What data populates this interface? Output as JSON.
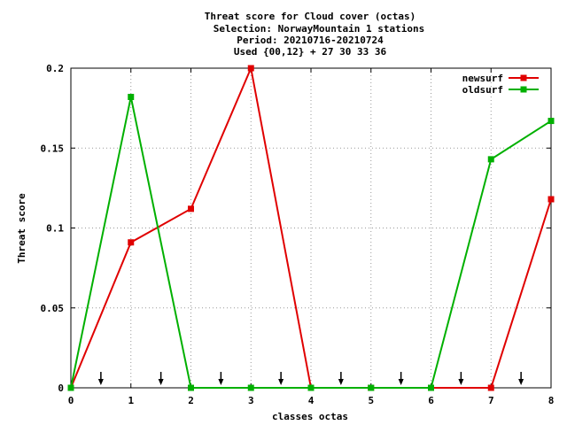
{
  "chart_data": {
    "type": "line",
    "title_lines": [
      "Threat score  for Cloud cover (octas)",
      "Selection: NorwayMountain      1 stations",
      "Period: 20210716-20210724",
      "Used {00,12} + 27 30 33 36"
    ],
    "xlabel": "classes octas",
    "ylabel": "Threat score",
    "xlim": [
      0,
      8
    ],
    "ylim": [
      0,
      0.2
    ],
    "x_ticks": [
      "0",
      "1",
      "2",
      "3",
      "4",
      "5",
      "6",
      "7",
      "8"
    ],
    "y_ticks": [
      "0",
      "0.05",
      "0.1",
      "0.15",
      "0.2"
    ],
    "grid": true,
    "legend_position": "top-right",
    "threshold_arrows_x": [
      0.5,
      1.5,
      2.5,
      3.5,
      4.5,
      5.5,
      6.5,
      7.5
    ],
    "x": [
      0,
      1,
      2,
      3,
      4,
      5,
      6,
      7,
      8
    ],
    "series": [
      {
        "name": "newsurf",
        "color": "#e00000",
        "values": [
          0,
          0.091,
          0.112,
          0.2,
          0,
          0,
          0,
          0,
          0.118
        ]
      },
      {
        "name": "oldsurf",
        "color": "#00b000",
        "values": [
          0,
          0.182,
          0,
          0,
          0,
          0,
          0,
          0.143,
          0.167
        ]
      }
    ]
  }
}
